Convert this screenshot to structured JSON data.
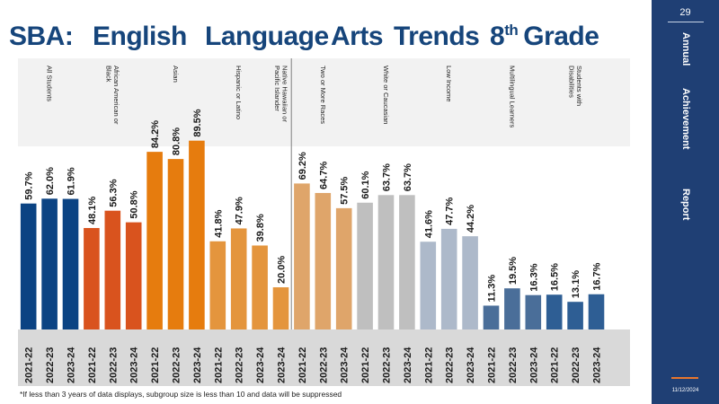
{
  "title_parts": {
    "sba": "SBA:",
    "english": "English",
    "language": "Language",
    "arts": "Arts",
    "trends": "Trends",
    "grade_num": "8",
    "grade_sup": "th",
    "grade_word": "Grade"
  },
  "sidebar": {
    "page_number": "29",
    "words": [
      "Annual",
      "Achievement",
      "Report"
    ],
    "date": "11/12/2024"
  },
  "footnote": "*If less than 3 years of data displays, subgroup size is less than 10 and data will be suppressed",
  "colors": {
    "title": "#16457b",
    "sidebar": "#1f3f74",
    "accent": "#e8762d"
  },
  "chart_data": {
    "type": "bar",
    "title": "SBA: English Language Arts Trends 8th Grade",
    "ylim": [
      0,
      100
    ],
    "value_suffix": "%",
    "groups": [
      {
        "name": "All Students",
        "color": "#0b4383",
        "years": [
          "2021-22",
          "2022-23",
          "2023-24"
        ],
        "values": [
          59.7,
          62.0,
          61.9
        ]
      },
      {
        "name": "African American or Black",
        "color": "#d9531e",
        "years": [
          "2021-22",
          "2022-23",
          "2023-24"
        ],
        "values": [
          48.1,
          56.3,
          50.8
        ]
      },
      {
        "name": "Asian",
        "color": "#e67c0e",
        "years": [
          "2021-22",
          "2022-23",
          "2023-24"
        ],
        "values": [
          84.2,
          80.8,
          89.5
        ]
      },
      {
        "name": "Hispanic or Latino",
        "color": "#e4953d",
        "years": [
          "2021-22",
          "2022-23",
          "2023-24"
        ],
        "values": [
          41.8,
          47.9,
          39.8
        ]
      },
      {
        "name": "Native Hawaiian or Pacific Islander",
        "color": "#e4953d",
        "years": [
          "2023-24"
        ],
        "values": [
          20.0
        ]
      },
      {
        "name": "Two or More Races",
        "color": "#dfa56a",
        "years": [
          "2021-22",
          "2022-23",
          "2023-24"
        ],
        "values": [
          69.2,
          64.7,
          57.5
        ]
      },
      {
        "name": "White or Caucasian",
        "color": "#bfbfbf",
        "years": [
          "2021-22",
          "2022-23",
          "2023-24"
        ],
        "values": [
          60.1,
          63.7,
          63.7
        ]
      },
      {
        "name": "Low Income",
        "color": "#adb9ca",
        "years": [
          "2021-22",
          "2022-23",
          "2023-24"
        ],
        "values": [
          41.6,
          47.7,
          44.2
        ]
      },
      {
        "name": "Multilingual Learners",
        "color": "#4a6e99",
        "years": [
          "2021-22",
          "2022-23",
          "2023-24"
        ],
        "values": [
          11.3,
          19.5,
          16.3
        ]
      },
      {
        "name": "Students with Disabilities",
        "color": "#2e5e94",
        "years": [
          "2021-22",
          "2022-23",
          "2023-24"
        ],
        "values": [
          16.5,
          13.1,
          16.7
        ]
      }
    ]
  }
}
